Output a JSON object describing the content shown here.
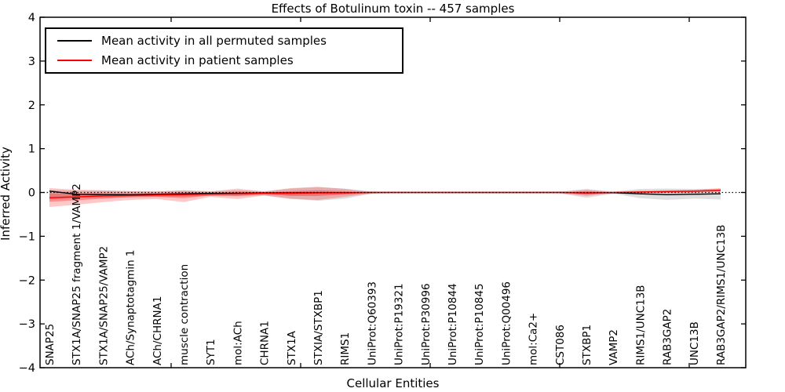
{
  "figure": {
    "title": "Effects of Botulinum toxin -- 457 samples"
  },
  "axes": {
    "xlabel": "Cellular Entities",
    "ylabel": "Inferred Activity",
    "y_tick_labels": [
      "4",
      "3",
      "2",
      "1",
      "0",
      "−1",
      "−2",
      "−3",
      "−4"
    ]
  },
  "colors": {
    "permuted_line": "#000000",
    "patient_line": "#ff0000",
    "permuted_band": "#000000",
    "patient_band": "#ff0000",
    "spine": "#000000"
  },
  "chart_data": {
    "type": "line",
    "title": "Effects of Botulinum toxin -- 457 samples",
    "xlabel": "Cellular Entities",
    "ylabel": "Inferred Activity",
    "ylim": [
      -4,
      4
    ],
    "y_ticks": [
      4,
      3,
      2,
      1,
      0,
      -1,
      -2,
      -3,
      -4
    ],
    "grid": false,
    "legend_position": "upper left",
    "zero_reference_line": "black dotted at y=0",
    "categories": [
      "SNAP25",
      "STX1A/SNAP25 fragment 1/VAMP2",
      "STX1A/SNAP25/VAMP2",
      "ACh/Synaptotagmin 1",
      "ACh/CHRNA1",
      "muscle contraction",
      "SYT1",
      "mol:ACh",
      "CHRNA1",
      "STX1A",
      "STXIA/STXBP1",
      "RIMS1",
      "UniProt:Q60393",
      "UniProt:P19321",
      "UniProt:P30996",
      "UniProt:P10844",
      "UniProt:P10845",
      "UniProt:Q00496",
      "mol:Ca2+",
      "CST086",
      "STXBP1",
      "VAMP2",
      "RIMS1/UNC13B",
      "RAB3GAP2",
      "UNC13B",
      "RAB3GAP2/RIMS1/UNC13B"
    ],
    "series": [
      {
        "name": "permuted-mean",
        "label": "Mean activity in all permuted samples",
        "color": "#000000",
        "values": [
          0.03,
          -0.04,
          -0.05,
          -0.05,
          -0.04,
          -0.03,
          -0.02,
          -0.02,
          -0.01,
          -0.01,
          -0.005,
          -0.005,
          0,
          0,
          0,
          0,
          0,
          0,
          0,
          0,
          -0.01,
          -0.005,
          -0.03,
          -0.05,
          -0.04,
          -0.03
        ]
      },
      {
        "name": "patient-mean",
        "label": "Mean activity in patient samples",
        "color": "#ff0000",
        "values": [
          -0.12,
          -0.1,
          -0.08,
          -0.07,
          -0.06,
          -0.05,
          -0.04,
          -0.03,
          -0.02,
          -0.02,
          -0.01,
          -0.01,
          0,
          0,
          0,
          0,
          0,
          0,
          0,
          0,
          -0.01,
          0,
          0.01,
          0.02,
          0.03,
          0.05
        ]
      }
    ],
    "bands": [
      {
        "name": "permuted-spread",
        "color": "#000000",
        "opacity": 0.13,
        "upper": [
          0.06,
          0.04,
          0.04,
          0.03,
          0.03,
          0.04,
          0.03,
          0.05,
          0.03,
          0.09,
          0.12,
          0.09,
          0.02,
          0.01,
          0.01,
          0.01,
          0.01,
          0.01,
          0.01,
          0.02,
          0.08,
          0.02,
          0.08,
          0.09,
          0.08,
          0.08
        ],
        "lower": [
          -0.16,
          -0.13,
          -0.12,
          -0.11,
          -0.1,
          -0.1,
          -0.08,
          -0.09,
          -0.07,
          -0.14,
          -0.19,
          -0.14,
          -0.03,
          -0.01,
          -0.01,
          -0.01,
          -0.01,
          -0.01,
          -0.01,
          -0.02,
          -0.12,
          -0.03,
          -0.13,
          -0.17,
          -0.14,
          -0.16
        ]
      },
      {
        "name": "patient-spread-outer",
        "color": "#ff0000",
        "opacity": 0.22,
        "upper": [
          0.1,
          0.06,
          0.05,
          0.03,
          0.02,
          0.05,
          0.02,
          0.09,
          0.02,
          0.1,
          0.13,
          0.08,
          0.01,
          0.005,
          0.005,
          0.005,
          0.005,
          0.005,
          0.005,
          0.01,
          0.06,
          0.01,
          0.04,
          0.05,
          0.06,
          0.1
        ],
        "lower": [
          -0.33,
          -0.28,
          -0.22,
          -0.17,
          -0.15,
          -0.22,
          -0.1,
          -0.15,
          -0.07,
          -0.15,
          -0.17,
          -0.1,
          -0.02,
          -0.005,
          -0.005,
          -0.005,
          -0.005,
          -0.005,
          -0.005,
          -0.01,
          -0.08,
          -0.01,
          -0.02,
          -0.01,
          0.0,
          0.01
        ],
        "vals_note": ""
      },
      {
        "name": "patient-spread-inner",
        "color": "#ff0000",
        "opacity": 0.3,
        "upper": [
          -0.02,
          -0.03,
          -0.02,
          -0.03,
          -0.02,
          0.0,
          -0.01,
          0.02,
          0.0,
          0.03,
          0.05,
          0.03,
          0.005,
          0.002,
          0.002,
          0.002,
          0.002,
          0.002,
          0.002,
          0.005,
          0.03,
          0.005,
          0.02,
          0.03,
          0.04,
          0.07
        ],
        "lower": [
          -0.21,
          -0.18,
          -0.14,
          -0.11,
          -0.1,
          -0.13,
          -0.07,
          -0.08,
          -0.04,
          -0.08,
          -0.08,
          -0.05,
          -0.01,
          -0.002,
          -0.002,
          -0.002,
          -0.002,
          -0.002,
          -0.002,
          -0.005,
          -0.05,
          -0.005,
          -0.005,
          0.005,
          0.01,
          0.03
        ]
      }
    ]
  }
}
